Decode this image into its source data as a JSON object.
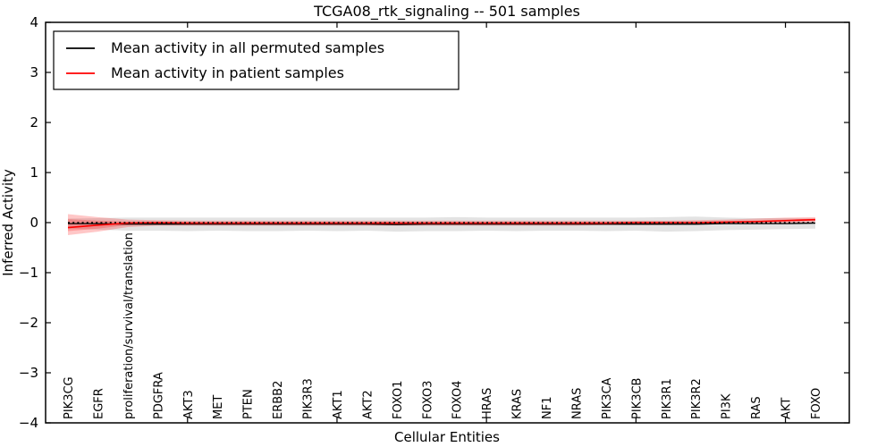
{
  "title": "TCGA08_rtk_signaling -- 501 samples",
  "axes": {
    "xlabel": "Cellular Entities",
    "ylabel": "Inferred Activity",
    "ytick_labels": [
      "4",
      "3",
      "2",
      "1",
      "0",
      "−1",
      "−2",
      "−3",
      "−4"
    ]
  },
  "legend": {
    "items": [
      {
        "label": "Mean activity in all permuted samples",
        "color": "#000000"
      },
      {
        "label": "Mean activity in patient samples",
        "color": "#ff0000"
      }
    ]
  },
  "colors": {
    "frame": "#000000",
    "permuted_line": "#000000",
    "patient_line": "#ff0000",
    "permuted_band": "rgba(128,128,128,0.22)",
    "patient_band": "rgba(255,0,0,0.22)",
    "zero_line": "#000000"
  },
  "chart_data": {
    "type": "line",
    "title": "TCGA08_rtk_signaling -- 501 samples",
    "xlabel": "Cellular Entities",
    "ylabel": "Inferred Activity",
    "ylim": [
      -4,
      4
    ],
    "yticks": [
      4,
      3,
      2,
      1,
      0,
      -1,
      -2,
      -3,
      -4
    ],
    "xtick_indices": [
      4,
      9,
      14,
      19,
      24
    ],
    "xtick_rotation": 90,
    "grid": false,
    "legend_position": "upper left",
    "zero_reference_line": 0,
    "categories": [
      "PIK3CG",
      "EGFR",
      "proliferation/survival/translation",
      "PDGFRA",
      "AKT3",
      "MET",
      "PTEN",
      "ERBB2",
      "PIK3R3",
      "AKT1",
      "AKT2",
      "FOXO1",
      "FOXO3",
      "FOXO4",
      "HRAS",
      "KRAS",
      "NF1",
      "NRAS",
      "PIK3CA",
      "PIK3CB",
      "PIK3R1",
      "PIK3R2",
      "PI3K",
      "RAS",
      "AKT",
      "FOXO"
    ],
    "series": [
      {
        "name": "Mean activity in all permuted samples",
        "color": "#000000",
        "style": "solid",
        "values": [
          -0.02,
          -0.02,
          -0.03,
          -0.03,
          -0.03,
          -0.03,
          -0.03,
          -0.03,
          -0.03,
          -0.03,
          -0.03,
          -0.04,
          -0.03,
          -0.03,
          -0.03,
          -0.03,
          -0.03,
          -0.03,
          -0.03,
          -0.03,
          -0.03,
          -0.03,
          -0.02,
          -0.02,
          -0.02,
          -0.01
        ],
        "band_upper": [
          0.08,
          0.09,
          0.1,
          0.1,
          0.1,
          0.1,
          0.1,
          0.1,
          0.1,
          0.1,
          0.1,
          0.1,
          0.1,
          0.11,
          0.1,
          0.1,
          0.1,
          0.1,
          0.1,
          0.1,
          0.11,
          0.12,
          0.1,
          0.09,
          0.09,
          0.08
        ],
        "band_lower": [
          -0.12,
          -0.14,
          -0.16,
          -0.16,
          -0.17,
          -0.16,
          -0.17,
          -0.17,
          -0.16,
          -0.17,
          -0.16,
          -0.18,
          -0.17,
          -0.17,
          -0.16,
          -0.17,
          -0.16,
          -0.16,
          -0.17,
          -0.16,
          -0.18,
          -0.17,
          -0.15,
          -0.14,
          -0.13,
          -0.12
        ]
      },
      {
        "name": "Mean activity in patient samples",
        "color": "#ff0000",
        "style": "solid",
        "values": [
          -0.1,
          -0.05,
          -0.01,
          0.0,
          -0.01,
          -0.01,
          -0.01,
          -0.01,
          -0.01,
          -0.01,
          -0.01,
          -0.01,
          -0.01,
          -0.01,
          -0.01,
          -0.01,
          -0.01,
          -0.01,
          -0.01,
          0.0,
          0.0,
          0.0,
          0.01,
          0.02,
          0.04,
          0.06
        ],
        "band_outer_upper": [
          0.17,
          0.11,
          0.06,
          0.05,
          0.04,
          0.04,
          0.04,
          0.04,
          0.04,
          0.04,
          0.04,
          0.04,
          0.04,
          0.04,
          0.04,
          0.04,
          0.04,
          0.04,
          0.04,
          0.04,
          0.04,
          0.05,
          0.06,
          0.08,
          0.1,
          0.11
        ],
        "band_outer_lower": [
          -0.25,
          -0.18,
          -0.09,
          -0.06,
          -0.06,
          -0.06,
          -0.06,
          -0.06,
          -0.06,
          -0.06,
          -0.06,
          -0.06,
          -0.06,
          -0.06,
          -0.06,
          -0.06,
          -0.06,
          -0.06,
          -0.05,
          -0.05,
          -0.05,
          -0.04,
          -0.03,
          -0.02,
          -0.01,
          0.01
        ],
        "band_inner_upper": [
          0.07,
          0.04,
          0.02,
          0.02,
          0.01,
          0.01,
          0.01,
          0.01,
          0.01,
          0.01,
          0.01,
          0.01,
          0.01,
          0.01,
          0.01,
          0.01,
          0.01,
          0.01,
          0.01,
          0.02,
          0.02,
          0.02,
          0.03,
          0.04,
          0.06,
          0.08
        ],
        "band_inner_lower": [
          -0.17,
          -0.12,
          -0.05,
          -0.03,
          -0.03,
          -0.03,
          -0.03,
          -0.03,
          -0.03,
          -0.03,
          -0.03,
          -0.03,
          -0.03,
          -0.03,
          -0.03,
          -0.03,
          -0.03,
          -0.03,
          -0.03,
          -0.02,
          -0.02,
          -0.02,
          -0.01,
          0.0,
          0.02,
          0.04
        ]
      }
    ]
  }
}
